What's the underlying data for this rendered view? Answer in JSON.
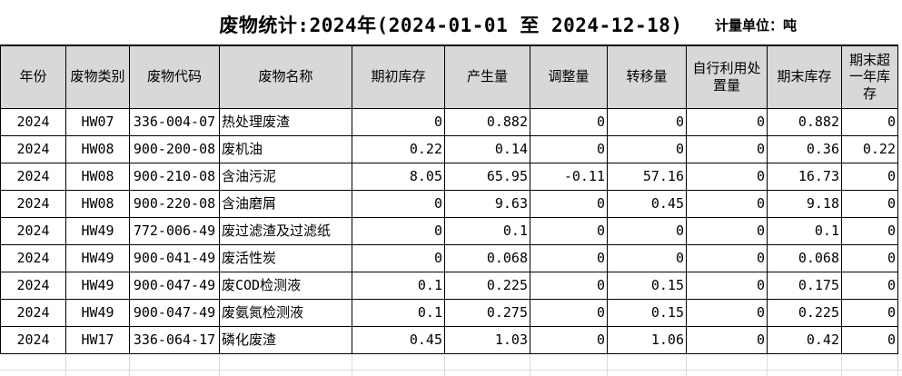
{
  "title": "废物统计:2024年(2024-01-01 至 2024-12-18)",
  "unit_label": "计量单位：吨",
  "table": {
    "headers": [
      "年份",
      "废物类别",
      "废物代码",
      "废物名称",
      "期初库存",
      "产生量",
      "调整量",
      "转移量",
      "自行利用处置量",
      "期末库存",
      "期末超一年库存"
    ],
    "rows": [
      [
        "2024",
        "HW07",
        "336-004-07",
        "热处理废渣",
        "0",
        "0.882",
        "0",
        "0",
        "0",
        "0.882",
        "0"
      ],
      [
        "2024",
        "HW08",
        "900-200-08",
        "废机油",
        "0.22",
        "0.14",
        "0",
        "0",
        "0",
        "0.36",
        "0.22"
      ],
      [
        "2024",
        "HW08",
        "900-210-08",
        "含油污泥",
        "8.05",
        "65.95",
        "-0.11",
        "57.16",
        "0",
        "16.73",
        "0"
      ],
      [
        "2024",
        "HW08",
        "900-220-08",
        "含油磨屑",
        "0",
        "9.63",
        "0",
        "0.45",
        "0",
        "9.18",
        "0"
      ],
      [
        "2024",
        "HW49",
        "772-006-49",
        "废过滤渣及过滤纸",
        "0",
        "0.1",
        "0",
        "0",
        "0",
        "0.1",
        "0"
      ],
      [
        "2024",
        "HW49",
        "900-041-49",
        "废活性炭",
        "0",
        "0.068",
        "0",
        "0",
        "0",
        "0.068",
        "0"
      ],
      [
        "2024",
        "HW49",
        "900-047-49",
        "废COD检测液",
        "0.1",
        "0.225",
        "0",
        "0.15",
        "0",
        "0.175",
        "0"
      ],
      [
        "2024",
        "HW49",
        "900-047-49",
        "废氨氮检测液",
        "0.1",
        "0.275",
        "0",
        "0.15",
        "0",
        "0.225",
        "0"
      ],
      [
        "2024",
        "HW17",
        "336-064-17",
        "磷化废渣",
        "0.45",
        "1.03",
        "0",
        "1.06",
        "0",
        "0.42",
        "0"
      ]
    ]
  },
  "colors": {
    "background": "#ffffff",
    "text": "#000000",
    "border": "#000000",
    "header_bg": "#d8d8d8",
    "grid_line": "#d9d9d9"
  }
}
